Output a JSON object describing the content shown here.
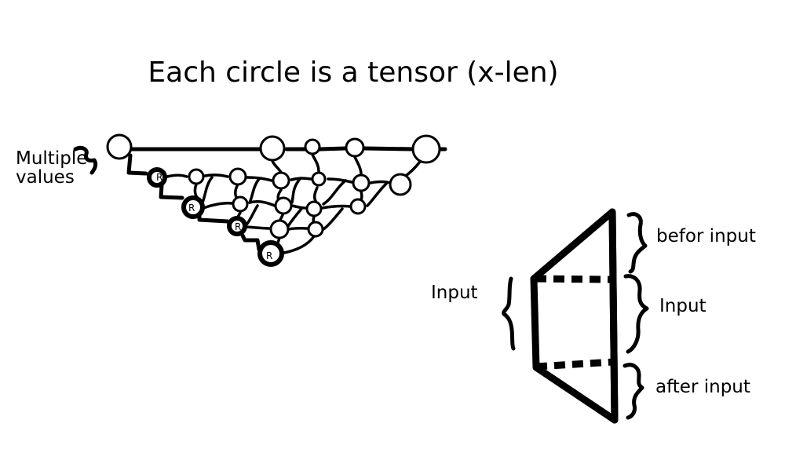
{
  "title": "Each circle is a tensor (x-len)",
  "left_label": {
    "line1": "Multiple",
    "line2": "values"
  },
  "network": {
    "recurrent_marker": "R",
    "node_description": "tensor"
  },
  "trapezoid": {
    "left_label": "Input",
    "right_labels": {
      "top": "befor input",
      "middle": "Input",
      "bottom": "after input"
    }
  }
}
